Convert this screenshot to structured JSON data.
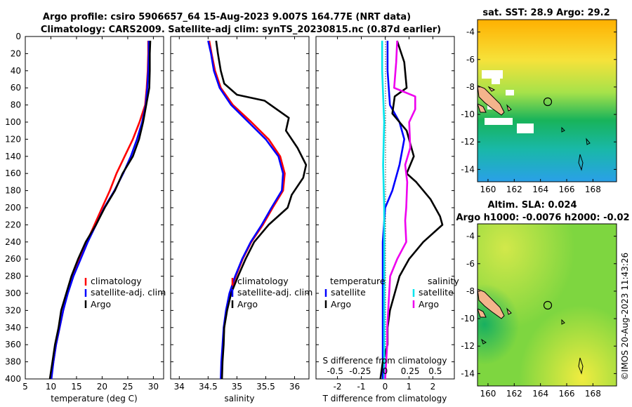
{
  "header": {
    "title_line1": "Argo profile: csiro 5906657_64 15-Aug-2023 9.007S 164.77E (NRT data)",
    "title_line2": "Climatology: CARS2009. Satellite-adj clim: synTS_20230815.nc (0.87d earlier)"
  },
  "watermark": "©IMOS 20-Aug-2023 11:43:26",
  "colors": {
    "climatology": "#ff0000",
    "satellite": "#0000ff",
    "argo": "#000000",
    "sat_sdiff": "#00e5ee",
    "argo_sdiff": "#ee00ee"
  },
  "chart_data": [
    {
      "type": "line",
      "id": "temperature",
      "xlabel": "temperature (deg C)",
      "xlim": [
        5,
        32
      ],
      "ylim": [
        0,
        400
      ],
      "xticks": [
        5,
        10,
        15,
        20,
        25,
        30
      ],
      "yticks": [
        0,
        20,
        40,
        60,
        80,
        100,
        120,
        140,
        160,
        180,
        200,
        220,
        240,
        260,
        280,
        300,
        320,
        340,
        360,
        380,
        400
      ],
      "legend": [
        "climatology",
        "satellite-adj. clim",
        "Argo"
      ],
      "series": [
        {
          "name": "climatology",
          "color": "#ff0000",
          "points": [
            [
              29.0,
              5
            ],
            [
              29.0,
              20
            ],
            [
              28.9,
              40
            ],
            [
              28.7,
              60
            ],
            [
              28.4,
              80
            ],
            [
              27.3,
              100
            ],
            [
              26.0,
              120
            ],
            [
              24.4,
              140
            ],
            [
              22.8,
              160
            ],
            [
              21.5,
              180
            ],
            [
              20.0,
              200
            ],
            [
              18.5,
              220
            ],
            [
              17.0,
              240
            ],
            [
              15.6,
              260
            ],
            [
              14.3,
              280
            ],
            [
              13.2,
              300
            ],
            [
              12.4,
              320
            ],
            [
              11.7,
              340
            ],
            [
              11.0,
              360
            ],
            [
              10.5,
              380
            ],
            [
              10.0,
              400
            ]
          ]
        },
        {
          "name": "satellite-adj. clim",
          "color": "#0000ff",
          "points": [
            [
              29.1,
              5
            ],
            [
              29.1,
              20
            ],
            [
              29.0,
              40
            ],
            [
              28.8,
              60
            ],
            [
              28.5,
              80
            ],
            [
              27.8,
              100
            ],
            [
              26.8,
              120
            ],
            [
              25.6,
              140
            ],
            [
              24.1,
              160
            ],
            [
              22.4,
              180
            ],
            [
              20.4,
              200
            ],
            [
              18.8,
              220
            ],
            [
              17.2,
              240
            ],
            [
              15.8,
              260
            ],
            [
              14.4,
              280
            ],
            [
              13.3,
              300
            ],
            [
              12.4,
              320
            ],
            [
              11.7,
              340
            ],
            [
              11.0,
              360
            ],
            [
              10.5,
              380
            ],
            [
              10.1,
              400
            ]
          ]
        },
        {
          "name": "Argo",
          "color": "#000000",
          "points": [
            [
              29.4,
              5
            ],
            [
              29.3,
              20
            ],
            [
              29.3,
              40
            ],
            [
              29.2,
              60
            ],
            [
              28.6,
              80
            ],
            [
              28.0,
              100
            ],
            [
              27.2,
              120
            ],
            [
              26.0,
              140
            ],
            [
              24.0,
              160
            ],
            [
              22.5,
              180
            ],
            [
              20.5,
              200
            ],
            [
              18.8,
              220
            ],
            [
              16.8,
              240
            ],
            [
              15.3,
              260
            ],
            [
              14.0,
              280
            ],
            [
              13.0,
              300
            ],
            [
              12.0,
              320
            ],
            [
              11.5,
              340
            ],
            [
              10.8,
              360
            ],
            [
              10.3,
              380
            ],
            [
              9.8,
              400
            ]
          ]
        }
      ]
    },
    {
      "type": "line",
      "id": "salinity",
      "xlabel": "salinity",
      "xlim": [
        33.85,
        36.25
      ],
      "ylim": [
        0,
        400
      ],
      "xticks": [
        34,
        34.5,
        35,
        35.5,
        36
      ],
      "xticklabels": [
        "34",
        "34.5",
        "35",
        "35.5",
        "36"
      ],
      "legend": [
        "climatology",
        "satellite-adj. clim",
        "Argo"
      ],
      "series": [
        {
          "name": "climatology",
          "color": "#ff0000",
          "points": [
            [
              34.52,
              5
            ],
            [
              34.56,
              20
            ],
            [
              34.62,
              40
            ],
            [
              34.72,
              60
            ],
            [
              34.93,
              80
            ],
            [
              35.25,
              100
            ],
            [
              35.55,
              120
            ],
            [
              35.75,
              140
            ],
            [
              35.83,
              160
            ],
            [
              35.8,
              180
            ],
            [
              35.62,
              200
            ],
            [
              35.45,
              220
            ],
            [
              35.25,
              240
            ],
            [
              35.1,
              260
            ],
            [
              34.98,
              280
            ],
            [
              34.88,
              300
            ],
            [
              34.82,
              320
            ],
            [
              34.78,
              340
            ],
            [
              34.76,
              360
            ],
            [
              34.74,
              380
            ],
            [
              34.73,
              400
            ]
          ]
        },
        {
          "name": "satellite-adj. clim",
          "color": "#0000ff",
          "points": [
            [
              34.5,
              5
            ],
            [
              34.55,
              20
            ],
            [
              34.6,
              40
            ],
            [
              34.7,
              60
            ],
            [
              34.9,
              80
            ],
            [
              35.2,
              100
            ],
            [
              35.5,
              120
            ],
            [
              35.72,
              140
            ],
            [
              35.8,
              160
            ],
            [
              35.78,
              180
            ],
            [
              35.6,
              200
            ],
            [
              35.43,
              220
            ],
            [
              35.24,
              240
            ],
            [
              35.09,
              260
            ],
            [
              34.97,
              280
            ],
            [
              34.87,
              300
            ],
            [
              34.81,
              320
            ],
            [
              34.77,
              340
            ],
            [
              34.75,
              360
            ],
            [
              34.73,
              380
            ],
            [
              34.72,
              400
            ]
          ]
        },
        {
          "name": "Argo",
          "color": "#000000",
          "points": [
            [
              34.64,
              5
            ],
            [
              34.67,
              20
            ],
            [
              34.72,
              40
            ],
            [
              34.78,
              55
            ],
            [
              35.0,
              68
            ],
            [
              35.48,
              75
            ],
            [
              35.9,
              95
            ],
            [
              35.85,
              110
            ],
            [
              36.05,
              130
            ],
            [
              36.2,
              150
            ],
            [
              36.15,
              165
            ],
            [
              35.95,
              185
            ],
            [
              35.88,
              200
            ],
            [
              35.55,
              220
            ],
            [
              35.3,
              240
            ],
            [
              35.15,
              260
            ],
            [
              35.02,
              280
            ],
            [
              34.9,
              300
            ],
            [
              34.83,
              320
            ],
            [
              34.78,
              340
            ],
            [
              34.77,
              360
            ],
            [
              34.75,
              380
            ],
            [
              34.74,
              400
            ]
          ]
        }
      ]
    },
    {
      "type": "line",
      "id": "difference",
      "xlabel": "T difference from climatology",
      "xlabel_top": "S difference from climatology",
      "xlim": [
        -2.9,
        2.9
      ],
      "ylim": [
        0,
        400
      ],
      "xticks": [
        -2,
        -1,
        0,
        1,
        2
      ],
      "xticklabels": [
        "-2",
        "-1",
        "0",
        "1",
        "2"
      ],
      "xticks_s": [
        -0.5,
        -0.25,
        0,
        0.25,
        0.5
      ],
      "xticklabels_s": [
        "-0.5",
        "-0.25",
        "0",
        "0.25",
        "0.5"
      ],
      "legend_temperature": {
        "title": "temperature",
        "items": [
          "satellite",
          "Argo"
        ]
      },
      "legend_salinity": {
        "title": "salinity",
        "items": [
          "satellite",
          "Argo"
        ]
      },
      "series": [
        {
          "name": "temperature satellite",
          "color": "#0000ff",
          "points": [
            [
              0.1,
              5
            ],
            [
              0.1,
              40
            ],
            [
              0.2,
              80
            ],
            [
              0.6,
              100
            ],
            [
              0.8,
              120
            ],
            [
              0.6,
              150
            ],
            [
              0.3,
              180
            ],
            [
              0.0,
              200
            ],
            [
              -0.1,
              240
            ],
            [
              -0.1,
              300
            ],
            [
              -0.1,
              360
            ],
            [
              -0.1,
              400
            ]
          ]
        },
        {
          "name": "temperature Argo",
          "color": "#000000",
          "points": [
            [
              0.5,
              5
            ],
            [
              0.8,
              30
            ],
            [
              0.9,
              60
            ],
            [
              0.4,
              70
            ],
            [
              0.3,
              90
            ],
            [
              0.9,
              110
            ],
            [
              1.2,
              140
            ],
            [
              0.9,
              160
            ],
            [
              1.3,
              170
            ],
            [
              1.9,
              190
            ],
            [
              2.3,
              210
            ],
            [
              2.4,
              220
            ],
            [
              1.6,
              240
            ],
            [
              1.0,
              260
            ],
            [
              0.6,
              280
            ],
            [
              0.4,
              300
            ],
            [
              0.2,
              320
            ],
            [
              0.1,
              340
            ],
            [
              0.1,
              360
            ],
            [
              -0.1,
              380
            ],
            [
              -0.2,
              400
            ]
          ]
        },
        {
          "name": "salinity satellite",
          "color": "#00e5ee",
          "points": [
            [
              -0.03,
              5
            ],
            [
              -0.03,
              40
            ],
            [
              -0.01,
              100
            ],
            [
              -0.02,
              150
            ],
            [
              -0.01,
              200
            ],
            [
              -0.01,
              300
            ],
            [
              -0.01,
              400
            ]
          ]
        },
        {
          "name": "salinity Argo",
          "color": "#ee00ee",
          "points": [
            [
              0.12,
              5
            ],
            [
              0.11,
              30
            ],
            [
              0.09,
              60
            ],
            [
              0.3,
              70
            ],
            [
              0.3,
              85
            ],
            [
              0.24,
              100
            ],
            [
              0.25,
              130
            ],
            [
              0.2,
              150
            ],
            [
              0.22,
              170
            ],
            [
              0.21,
              200
            ],
            [
              0.2,
              215
            ],
            [
              0.21,
              240
            ],
            [
              0.12,
              260
            ],
            [
              0.05,
              280
            ],
            [
              0.04,
              300
            ],
            [
              0.03,
              320
            ],
            [
              0.02,
              340
            ],
            [
              0.02,
              360
            ],
            [
              0.01,
              380
            ],
            [
              0.0,
              400
            ]
          ]
        }
      ]
    },
    {
      "type": "heatmap",
      "id": "sst_map",
      "title": "sat. SST: 28.9 Argo: 29.2",
      "xlim": [
        159.2,
        169.8
      ],
      "ylim": [
        -14.9,
        -3.1
      ],
      "xticks": [
        160,
        162,
        164,
        166,
        168
      ],
      "yticks": [
        -4,
        -6,
        -8,
        -10,
        -12,
        -14
      ],
      "argo_position": [
        164.77,
        -9.007
      ]
    },
    {
      "type": "heatmap",
      "id": "sla_map",
      "title": "Altim. SLA: 0.024",
      "subtitle": "Argo h1000: -0.0076 h2000: -0.02",
      "xlim": [
        159.2,
        169.8
      ],
      "ylim": [
        -14.9,
        -3.1
      ],
      "xticks": [
        160,
        162,
        164,
        166,
        168
      ],
      "yticks": [
        -4,
        -6,
        -8,
        -10,
        -12,
        -14
      ],
      "argo_position": [
        164.77,
        -9.007
      ]
    }
  ]
}
